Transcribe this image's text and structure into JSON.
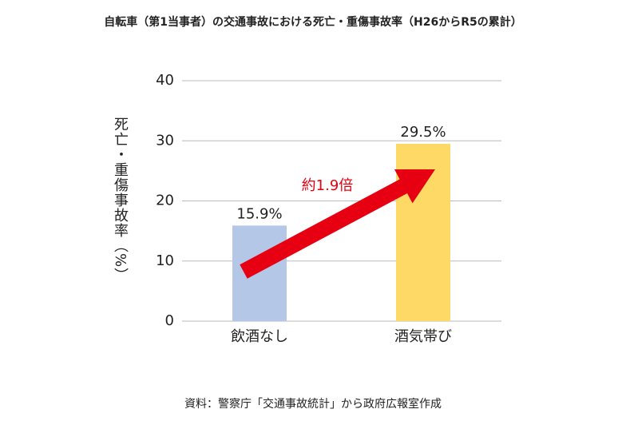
{
  "chart_data": {
    "type": "bar",
    "title": "自転車（第1当事者）の交通事故における死亡・重傷事故率（H26からR5の累計）",
    "y_label": "死亡・重傷事故率（%）",
    "categories": [
      "飲酒なし",
      "酒気帯び"
    ],
    "values": [
      15.9,
      29.5
    ],
    "value_labels": [
      "15.9%",
      "29.5%"
    ],
    "colors": [
      "#b4c7e7",
      "#ffd966"
    ],
    "ylim": [
      0,
      40
    ],
    "yticks": [
      0,
      10,
      20,
      30,
      40
    ],
    "grid": true,
    "annotation": "約1.9倍",
    "source": "資料：警察庁「交通事故統計」から政府広報室作成"
  }
}
